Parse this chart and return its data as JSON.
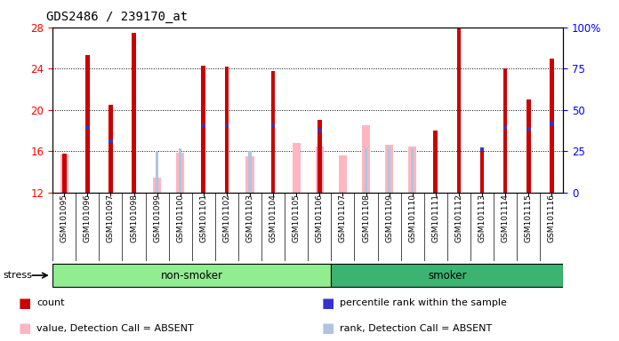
{
  "title": "GDS2486 / 239170_at",
  "samples": [
    "GSM101095",
    "GSM101096",
    "GSM101097",
    "GSM101098",
    "GSM101099",
    "GSM101100",
    "GSM101101",
    "GSM101102",
    "GSM101103",
    "GSM101104",
    "GSM101105",
    "GSM101106",
    "GSM101107",
    "GSM101108",
    "GSM101109",
    "GSM101110",
    "GSM101111",
    "GSM101112",
    "GSM101113",
    "GSM101114",
    "GSM101115",
    "GSM101116"
  ],
  "count": [
    15.75,
    25.3,
    20.5,
    27.5,
    null,
    null,
    24.3,
    24.2,
    null,
    23.8,
    null,
    19.0,
    null,
    null,
    null,
    null,
    18.0,
    29.0,
    16.4,
    24.0,
    21.0,
    25.0
  ],
  "percentile_rank": [
    null,
    18.3,
    17.0,
    null,
    null,
    null,
    18.5,
    18.5,
    null,
    18.5,
    null,
    18.0,
    null,
    null,
    null,
    null,
    null,
    null,
    16.2,
    18.3,
    18.2,
    18.7
  ],
  "absent_value": [
    15.65,
    null,
    null,
    null,
    13.5,
    15.9,
    null,
    null,
    15.5,
    null,
    16.8,
    16.5,
    15.6,
    18.5,
    16.6,
    16.5,
    null,
    null,
    null,
    null,
    null,
    null
  ],
  "absent_rank_val": [
    null,
    null,
    null,
    null,
    16.0,
    16.3,
    null,
    null,
    16.0,
    null,
    null,
    null,
    null,
    16.3,
    16.5,
    16.3,
    null,
    null,
    null,
    null,
    null,
    null
  ],
  "group": [
    "non-smoker",
    "non-smoker",
    "non-smoker",
    "non-smoker",
    "non-smoker",
    "non-smoker",
    "non-smoker",
    "non-smoker",
    "non-smoker",
    "non-smoker",
    "non-smoker",
    "non-smoker",
    "smoker",
    "smoker",
    "smoker",
    "smoker",
    "smoker",
    "smoker",
    "smoker",
    "smoker",
    "smoker",
    "smoker"
  ],
  "ylim": [
    12,
    28
  ],
  "yticks": [
    12,
    16,
    20,
    24,
    28
  ],
  "right_yticks_pct": [
    0,
    25,
    50,
    75,
    100
  ],
  "non_smoker_color": "#90ee90",
  "smoker_color": "#3cb371",
  "bar_color_count": "#cc0000",
  "bar_color_rank": "#3333cc",
  "bar_color_absent_value": "#ffb6c1",
  "bar_color_absent_rank": "#b0c4de",
  "tick_label_bg": "#d3d3d3"
}
